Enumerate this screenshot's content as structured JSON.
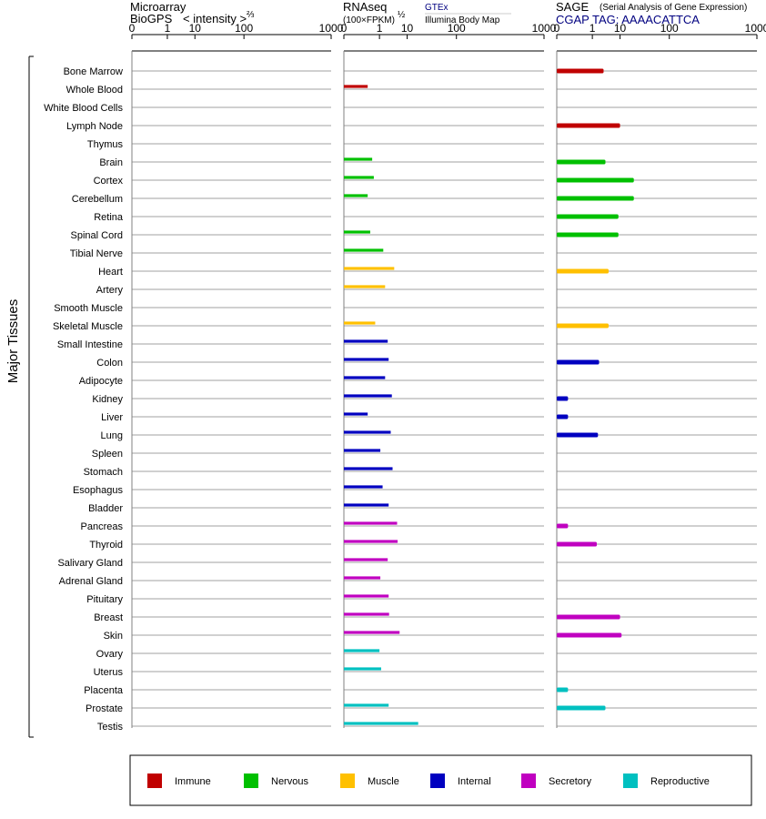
{
  "colors": {
    "Immune": "#c00000",
    "Nervous": "#00c000",
    "Muscle": "#ffc000",
    "Internal": "#0000c0",
    "Secretory": "#c000c0",
    "Reproductive": "#00c0c0"
  },
  "headers": {
    "microarray": {
      "line1": "Microarray",
      "line2": "BioGPS",
      "line3": "< intensity >",
      "exp": "⅔"
    },
    "rnaseq": {
      "line1": "RNAseq",
      "line2": "(100×FPKM)",
      "exp": "½",
      "gtex": "GTEx",
      "body_map": "Illumina Body Map"
    },
    "sage": {
      "line1": "SAGE",
      "line1b": "(Serial Analysis of Gene Expression)",
      "line2": "CGAP TAG: AAAACATTCA"
    }
  },
  "y_axis_label": "Major Tissues",
  "legend": [
    "Immune",
    "Nervous",
    "Muscle",
    "Internal",
    "Secretory",
    "Reproductive"
  ],
  "chart_data": {
    "type": "bar",
    "x_scale": "power (tick labels 0, 1, 10, 100, 1000)",
    "x_ticks": [
      0,
      1,
      10,
      100,
      1000
    ],
    "xlim": [
      0,
      1000
    ],
    "categories": [
      "Bone Marrow",
      "Whole Blood",
      "White Blood Cells",
      "Lymph Node",
      "Thymus",
      "Brain",
      "Cortex",
      "Cerebellum",
      "Retina",
      "Spinal Cord",
      "Tibial Nerve",
      "Heart",
      "Artery",
      "Smooth Muscle",
      "Skeletal Muscle",
      "Small Intestine",
      "Colon",
      "Adipocyte",
      "Kidney",
      "Liver",
      "Lung",
      "Spleen",
      "Stomach",
      "Esophagus",
      "Bladder",
      "Pancreas",
      "Thyroid",
      "Salivary Gland",
      "Adrenal Gland",
      "Pituitary",
      "Breast",
      "Skin",
      "Ovary",
      "Uterus",
      "Placenta",
      "Prostate",
      "Testis"
    ],
    "groups": [
      "Immune",
      "Immune",
      "Immune",
      "Immune",
      "Immune",
      "Nervous",
      "Nervous",
      "Nervous",
      "Nervous",
      "Nervous",
      "Nervous",
      "Muscle",
      "Muscle",
      "Muscle",
      "Muscle",
      "Internal",
      "Internal",
      "Internal",
      "Internal",
      "Internal",
      "Internal",
      "Internal",
      "Internal",
      "Internal",
      "Internal",
      "Secretory",
      "Secretory",
      "Secretory",
      "Secretory",
      "Secretory",
      "Secretory",
      "Secretory",
      "Reproductive",
      "Reproductive",
      "Reproductive",
      "Reproductive",
      "Reproductive"
    ],
    "series": [
      {
        "name": "Microarray",
        "values": [
          0,
          0,
          0,
          0,
          0,
          0,
          0,
          0,
          0,
          0,
          0,
          0,
          0,
          0,
          0,
          0,
          0,
          0,
          0,
          0,
          0,
          0,
          0,
          0,
          0,
          0,
          0,
          0,
          0,
          0,
          0,
          0,
          0,
          0,
          0,
          0,
          0
        ]
      },
      {
        "name": "RNAseq",
        "values": [
          null,
          0.2,
          null,
          null,
          null,
          0.4,
          0.5,
          0.2,
          null,
          0.3,
          1.5,
          4,
          1.8,
          null,
          0.6,
          2.3,
          2.5,
          1.8,
          3.3,
          0.2,
          3,
          1.1,
          3.5,
          1.4,
          2.5,
          5,
          5.2,
          2.3,
          1.1,
          2.5,
          2.6,
          6,
          1,
          1.2,
          null,
          2.5,
          19
        ]
      },
      {
        "name": "SAGE",
        "values": [
          3,
          null,
          null,
          10,
          null,
          3.5,
          22,
          22,
          9,
          9,
          null,
          4.5,
          null,
          null,
          4.5,
          null,
          2,
          null,
          0.01,
          0.01,
          1.8,
          null,
          null,
          null,
          null,
          0.01,
          1.6,
          null,
          null,
          null,
          10,
          11,
          null,
          null,
          0.01,
          3.5,
          null
        ]
      }
    ]
  }
}
